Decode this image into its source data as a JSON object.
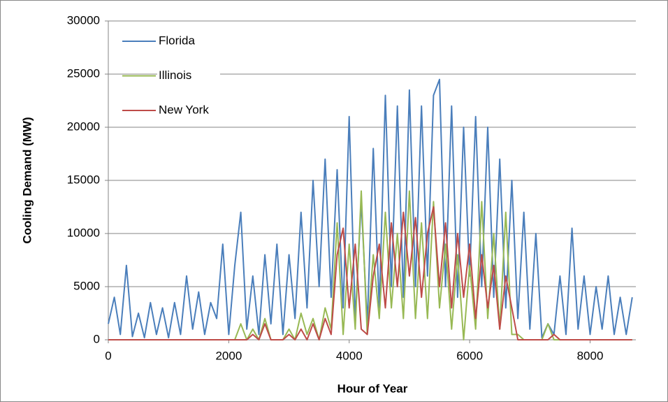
{
  "chart_data": {
    "type": "line",
    "xlabel": "Hour of Year",
    "ylabel": "Cooling Demand (MW)",
    "x": [
      0,
      100,
      200,
      300,
      400,
      500,
      600,
      700,
      800,
      900,
      1000,
      1100,
      1200,
      1300,
      1400,
      1500,
      1600,
      1700,
      1800,
      1900,
      2000,
      2100,
      2200,
      2300,
      2400,
      2500,
      2600,
      2700,
      2800,
      2900,
      3000,
      3100,
      3200,
      3300,
      3400,
      3500,
      3600,
      3700,
      3800,
      3900,
      4000,
      4100,
      4200,
      4300,
      4400,
      4500,
      4600,
      4700,
      4800,
      4900,
      5000,
      5100,
      5200,
      5300,
      5400,
      5500,
      5600,
      5700,
      5800,
      5900,
      6000,
      6100,
      6200,
      6300,
      6400,
      6500,
      6600,
      6700,
      6800,
      6900,
      7000,
      7100,
      7200,
      7300,
      7400,
      7500,
      7600,
      7700,
      7800,
      7900,
      8000,
      8100,
      8200,
      8300,
      8400,
      8500,
      8600,
      8700
    ],
    "series": [
      {
        "name": "Florida",
        "color": "#4a7ebb",
        "values": [
          1500,
          4000,
          500,
          7000,
          300,
          2500,
          200,
          3500,
          500,
          3000,
          200,
          3500,
          500,
          6000,
          1000,
          4500,
          500,
          3500,
          2000,
          9000,
          500,
          7000,
          12000,
          1000,
          6000,
          500,
          8000,
          1500,
          9000,
          500,
          8000,
          2000,
          12000,
          3000,
          15000,
          5000,
          17000,
          4000,
          16000,
          3000,
          21000,
          2000,
          13000,
          1500,
          18000,
          3000,
          23000,
          5000,
          22000,
          4000,
          23500,
          5000,
          22000,
          6000,
          23000,
          24500,
          5000,
          22000,
          4000,
          20000,
          6000,
          21000,
          5000,
          20000,
          4000,
          17000,
          3000,
          15000,
          2000,
          12000,
          1000,
          10000,
          200,
          1500,
          500,
          6000,
          500,
          10500,
          1000,
          6000,
          500,
          5000,
          1000,
          6000,
          500,
          4000,
          500,
          4000
        ]
      },
      {
        "name": "Illinois",
        "color": "#98b954",
        "values": [
          0,
          0,
          0,
          0,
          0,
          0,
          0,
          0,
          0,
          0,
          0,
          0,
          0,
          0,
          0,
          0,
          0,
          0,
          0,
          0,
          0,
          0,
          1500,
          0,
          1000,
          0,
          2000,
          0,
          0,
          0,
          1000,
          0,
          2500,
          500,
          2000,
          0,
          3000,
          1000,
          11000,
          500,
          9000,
          1000,
          14000,
          500,
          8000,
          2000,
          12000,
          3000,
          10000,
          2000,
          14000,
          2000,
          11000,
          2000,
          13000,
          3000,
          9000,
          1000,
          8000,
          0,
          7000,
          1000,
          13000,
          2000,
          10000,
          1000,
          12000,
          500,
          500,
          0,
          0,
          0,
          0,
          1500,
          0,
          0,
          0,
          0,
          0,
          0,
          0,
          0,
          0,
          0,
          0,
          0,
          0,
          0
        ]
      },
      {
        "name": "New York",
        "color": "#be4b48",
        "values": [
          0,
          0,
          0,
          0,
          0,
          0,
          0,
          0,
          0,
          0,
          0,
          0,
          0,
          0,
          0,
          0,
          0,
          0,
          0,
          0,
          0,
          0,
          0,
          0,
          500,
          0,
          1500,
          0,
          0,
          0,
          500,
          0,
          1000,
          0,
          1500,
          0,
          2000,
          500,
          8000,
          10500,
          3000,
          9000,
          1000,
          500,
          6000,
          9000,
          3000,
          11000,
          5000,
          12000,
          6000,
          11500,
          4000,
          10000,
          12500,
          5000,
          11000,
          3000,
          10000,
          4000,
          9000,
          2000,
          8000,
          3000,
          7000,
          1000,
          6000,
          3000,
          0,
          0,
          0,
          0,
          0,
          0,
          500,
          0,
          0,
          0,
          0,
          0,
          0,
          0,
          0,
          0,
          0,
          0,
          0,
          0
        ]
      }
    ],
    "xlim": [
      0,
      8760
    ],
    "xticks": [
      0,
      2000,
      4000,
      6000,
      8000
    ],
    "ylim": [
      0,
      30000
    ],
    "yticks": [
      0,
      5000,
      10000,
      15000,
      20000,
      25000,
      30000
    ],
    "grid": true,
    "legend": "upper-left"
  }
}
